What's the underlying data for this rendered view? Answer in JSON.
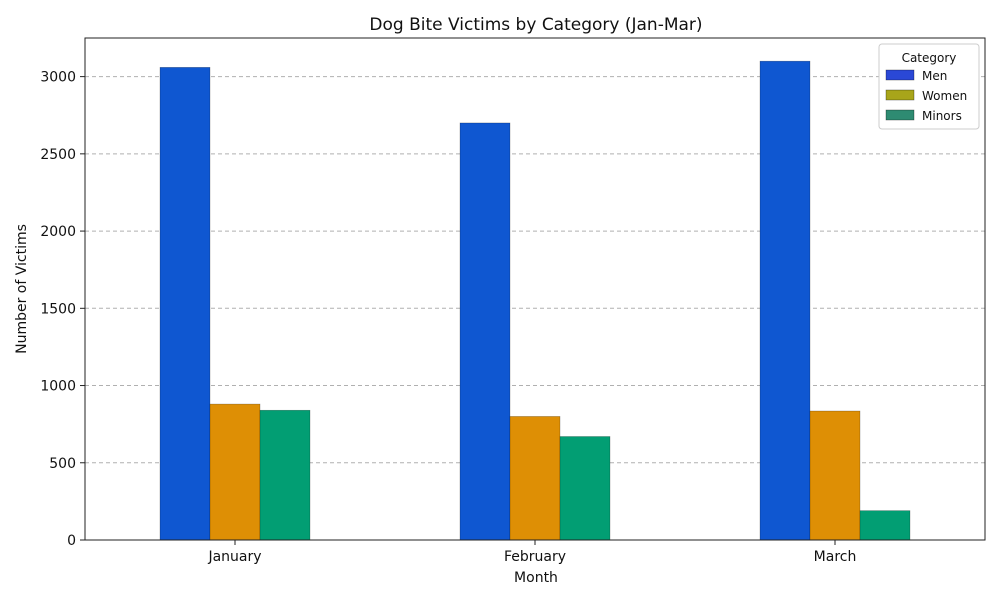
{
  "chart_data": {
    "type": "bar",
    "title": "Dog Bite Victims by Category (Jan-Mar)",
    "xlabel": "Month",
    "ylabel": "Number of Victims",
    "categories": [
      "January",
      "February",
      "March"
    ],
    "series": [
      {
        "name": "Men",
        "values": [
          3060,
          2700,
          3100
        ],
        "color": "#0f57d1"
      },
      {
        "name": "Women",
        "values": [
          880,
          800,
          835
        ],
        "color": "#de8f05"
      },
      {
        "name": "Minors",
        "values": [
          840,
          670,
          190
        ],
        "color": "#029e73"
      }
    ],
    "ylim": [
      0,
      3250
    ],
    "yticks": [
      0,
      500,
      1000,
      1500,
      2000,
      2500,
      3000
    ],
    "grid": "y-dashed",
    "legend": {
      "title": "Category",
      "placement": "top-right",
      "swatch_colors": [
        "#2a48d6",
        "#a8a51a",
        "#2e8b72"
      ]
    }
  }
}
